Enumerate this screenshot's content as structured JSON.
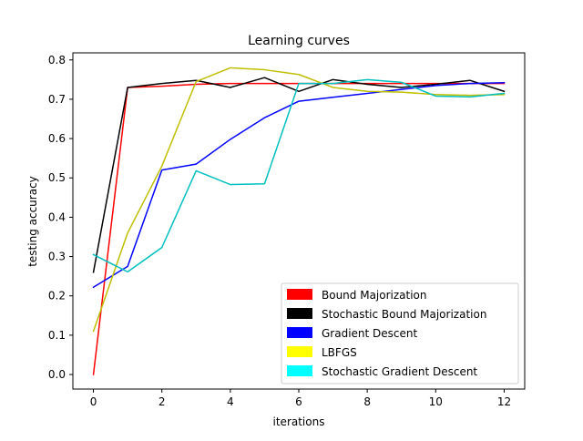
{
  "chart_data": {
    "type": "line",
    "title": "Learning curves",
    "xlabel": "iterations",
    "ylabel": "testing accuracy",
    "xlim": [
      -0.6,
      12.6
    ],
    "ylim": [
      -0.037,
      0.818
    ],
    "xticks": [
      0,
      2,
      4,
      6,
      8,
      10,
      12
    ],
    "yticks": [
      0.0,
      0.1,
      0.2,
      0.3,
      0.4,
      0.5,
      0.6,
      0.7,
      0.8
    ],
    "ytick_labels": [
      "0.0",
      "0.1",
      "0.2",
      "0.3",
      "0.4",
      "0.5",
      "0.6",
      "0.7",
      "0.8"
    ],
    "grid": false,
    "legend_position": "lower-right",
    "x": [
      0,
      1,
      2,
      3,
      4,
      5,
      6,
      7,
      8,
      9,
      10,
      11,
      12
    ],
    "series": [
      {
        "name": "Bound Majorization",
        "color": "#ff0000",
        "legend_color": "#ff0000",
        "values": [
          0.0,
          0.73,
          0.733,
          0.738,
          0.74,
          0.74,
          0.74,
          0.74,
          0.74,
          0.74,
          0.74,
          0.74,
          0.74
        ]
      },
      {
        "name": "Stochastic Bound Majorization",
        "color": "#000000",
        "legend_color": "#000000",
        "values": [
          0.26,
          0.73,
          0.74,
          0.748,
          0.73,
          0.755,
          0.72,
          0.75,
          0.738,
          0.73,
          0.738,
          0.748,
          0.72
        ]
      },
      {
        "name": "Gradient Descent",
        "color": "#0000ff",
        "legend_color": "#0000ff",
        "values": [
          0.222,
          0.275,
          0.52,
          0.535,
          0.598,
          0.653,
          0.695,
          0.705,
          0.715,
          0.725,
          0.735,
          0.74,
          0.742
        ]
      },
      {
        "name": "LBFGS",
        "color": "#bfbf00",
        "legend_color": "#ffff00",
        "values": [
          0.11,
          0.36,
          0.53,
          0.745,
          0.78,
          0.775,
          0.763,
          0.73,
          0.72,
          0.718,
          0.712,
          0.71,
          0.712
        ]
      },
      {
        "name": "Stochastic Gradient Descent",
        "color": "#00bfbf",
        "legend_color": "#00ffff",
        "values": [
          0.305,
          0.261,
          0.323,
          0.518,
          0.483,
          0.485,
          0.74,
          0.74,
          0.75,
          0.743,
          0.708,
          0.706,
          0.715
        ]
      }
    ]
  }
}
